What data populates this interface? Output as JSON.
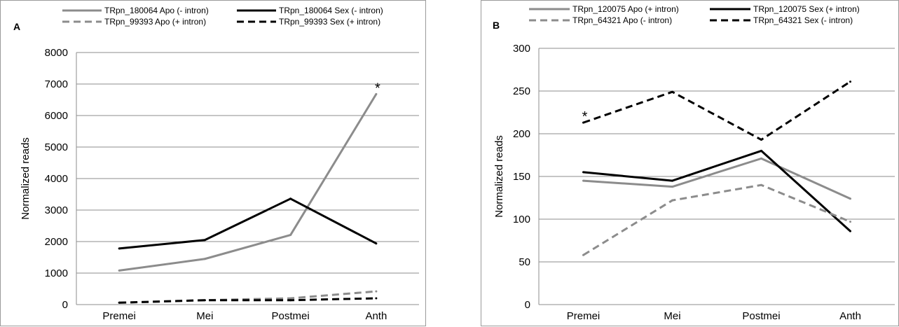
{
  "chart_data": [
    {
      "panel_label": "A",
      "type": "line",
      "title": "",
      "xlabel": "",
      "ylabel": "Normalized reads",
      "categories": [
        "Premei",
        "Mei",
        "Postmei",
        "Anth"
      ],
      "ylim": [
        0,
        8000
      ],
      "yticks": [
        "0",
        "1000",
        "2000",
        "3000",
        "4000",
        "5000",
        "6000",
        "7000",
        "8000"
      ],
      "grid": true,
      "legend_position": "top",
      "series": [
        {
          "name": "TRpn_180064  Apo (- intron)",
          "color": "#8c8c8c",
          "dash": "solid",
          "values": [
            1080,
            1450,
            2210,
            6680
          ]
        },
        {
          "name": "TRpn_180064  Sex (- intron)",
          "color": "#000000",
          "dash": "solid",
          "values": [
            1780,
            2050,
            3360,
            1940
          ]
        },
        {
          "name": "TRpn_99393  Apo (+ intron)",
          "color": "#8c8c8c",
          "dash": "dashed",
          "values": [
            60,
            140,
            200,
            420
          ]
        },
        {
          "name": "TRpn_99393  Sex (+ intron)",
          "color": "#000000",
          "dash": "dashed",
          "values": [
            60,
            140,
            140,
            200
          ]
        }
      ],
      "annotations": [
        {
          "text": "*",
          "category": "Anth",
          "value": 6680
        }
      ]
    },
    {
      "panel_label": "B",
      "type": "line",
      "title": "",
      "xlabel": "",
      "ylabel": "Normalized reads",
      "categories": [
        "Premei",
        "Mei",
        "Postmei",
        "Anth"
      ],
      "ylim": [
        0,
        300
      ],
      "yticks": [
        "0",
        "50",
        "100",
        "150",
        "200",
        "250",
        "300"
      ],
      "grid": true,
      "legend_position": "top",
      "series": [
        {
          "name": "TRpn_120075  Apo (+ intron)",
          "color": "#8c8c8c",
          "dash": "solid",
          "values": [
            145,
            138,
            171,
            124
          ]
        },
        {
          "name": "TRpn_120075  Sex (+ intron)",
          "color": "#000000",
          "dash": "solid",
          "values": [
            155,
            145,
            180,
            86
          ]
        },
        {
          "name": "TRpn_64321  Apo (- intron)",
          "color": "#8c8c8c",
          "dash": "dashed",
          "values": [
            58,
            122,
            140,
            97
          ]
        },
        {
          "name": "TRpn_64321  Sex (- intron)",
          "color": "#000000",
          "dash": "dashed",
          "values": [
            213,
            249,
            193,
            261
          ]
        }
      ],
      "annotations": [
        {
          "text": "*",
          "category": "Premei",
          "value": 213
        }
      ]
    }
  ]
}
